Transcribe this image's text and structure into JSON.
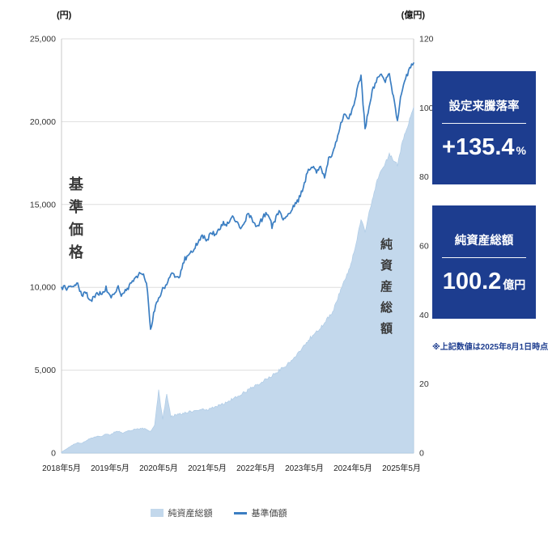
{
  "page": {
    "background": "#ffffff"
  },
  "chart": {
    "inner_label_left": "基準価格",
    "inner_label_right": "純資産総額"
  },
  "chart_data": {
    "type": "line+area",
    "title": "",
    "legend_position": "bottom",
    "x_tick_labels": [
      "2018年5月",
      "2019年5月",
      "2020年5月",
      "2021年5月",
      "2022年5月",
      "2023年5月",
      "2024年5月",
      "2025年5月"
    ],
    "x_tick_positions": [
      0,
      12,
      24,
      36,
      48,
      60,
      72,
      84
    ],
    "x_count": 88,
    "x_start": "2018年5月",
    "x_step_months": 1,
    "grid": true,
    "left_axis": {
      "unit": "(円)",
      "min": 0,
      "max": 25000,
      "ticks": [
        0,
        5000,
        10000,
        15000,
        20000,
        25000
      ]
    },
    "right_axis": {
      "unit": "(億円)",
      "min": 0,
      "max": 120,
      "ticks": [
        0,
        20,
        40,
        60,
        80,
        100,
        120
      ]
    },
    "series": [
      {
        "name": "基準価額",
        "type": "line",
        "axis": "left",
        "color": "#3b7ec2",
        "values": [
          10000,
          9950,
          10050,
          10150,
          10250,
          9550,
          9700,
          9200,
          9350,
          9650,
          9600,
          9950,
          9450,
          9700,
          9950,
          9500,
          9800,
          10150,
          10600,
          10750,
          10900,
          10300,
          7450,
          8700,
          9400,
          9900,
          10250,
          10800,
          10650,
          10450,
          11500,
          11900,
          12050,
          12500,
          12800,
          13100,
          12900,
          13300,
          13200,
          13600,
          13900,
          13800,
          14300,
          14100,
          13600,
          13850,
          14400,
          14100,
          13700,
          13900,
          14300,
          14500,
          13700,
          14200,
          14600,
          14050,
          14400,
          14800,
          15050,
          15500,
          16300,
          17100,
          17300,
          16900,
          17200,
          16750,
          17800,
          18100,
          18900,
          19900,
          20600,
          20200,
          20900,
          21900,
          22700,
          19500,
          21000,
          22000,
          22600,
          22800,
          22500,
          22900,
          21500,
          20000,
          21800,
          22600,
          23200,
          23540
        ]
      },
      {
        "name": "純資産総額",
        "type": "area",
        "axis": "right",
        "color": "#c3d8ec",
        "values": [
          0.3,
          1,
          1.8,
          2.5,
          3,
          2.8,
          3.5,
          4.2,
          4.5,
          5,
          4.8,
          5.5,
          5.2,
          6,
          6.3,
          5.8,
          6.2,
          6.5,
          6.8,
          7,
          7.2,
          6.8,
          6.2,
          8,
          18,
          10,
          17,
          10.5,
          11,
          11.2,
          11.5,
          11.8,
          12,
          12.3,
          12.6,
          12.8,
          12.5,
          13,
          13.4,
          13.8,
          14.2,
          14.8,
          15.5,
          16.2,
          16.8,
          17.4,
          18.2,
          18.8,
          19.5,
          20.2,
          21,
          21.8,
          22.3,
          23.2,
          24.3,
          25,
          26,
          27.2,
          28.2,
          29.5,
          31,
          32.8,
          34,
          35,
          36.5,
          37.5,
          39.5,
          41,
          44,
          47.5,
          50.5,
          53,
          57,
          62,
          68,
          64,
          70,
          74,
          79,
          82,
          84,
          86.5,
          85,
          83.5,
          89,
          93,
          96.5,
          100.2
        ]
      }
    ]
  },
  "panel": {
    "bg": "#1d3d8f",
    "stats": [
      {
        "label": "設定来騰落率",
        "value": "+135.4",
        "unit": "%"
      },
      {
        "label": "純資産総額",
        "value": "100.2",
        "unit": "億円"
      }
    ],
    "note": "※上記数値は2025年8月1日時点"
  },
  "legend": [
    {
      "label": "純資産総額",
      "marker": "area",
      "color": "#c3d8ec"
    },
    {
      "label": "基準価額",
      "marker": "line",
      "color": "#3b7ec2"
    }
  ]
}
